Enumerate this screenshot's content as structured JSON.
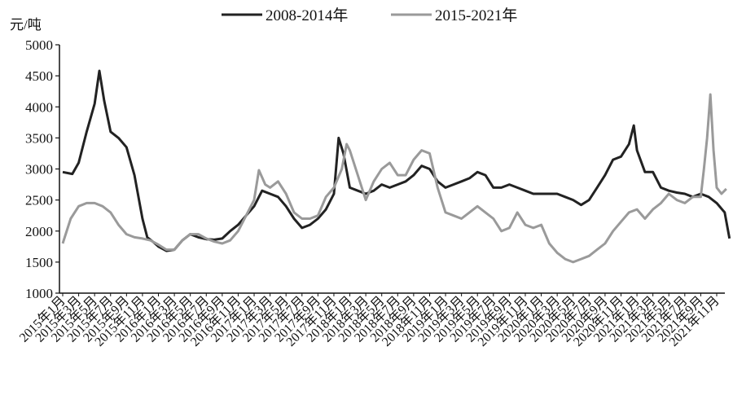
{
  "chart_data": {
    "type": "line",
    "title": "",
    "ylabel": "元/吨",
    "xlabel": "",
    "ylim": [
      1000,
      5000
    ],
    "yticks": [
      "5000",
      "4500",
      "4000",
      "3500",
      "3000",
      "2500",
      "2000",
      "1500",
      "1000"
    ],
    "grid": false,
    "legend_position": "top",
    "categories": [
      "2015年1月",
      "2015年3月",
      "2015年5月",
      "2015年7月",
      "2015年9月",
      "2015年11月",
      "2016年1月",
      "2016年3月",
      "2016年5月",
      "2016年7月",
      "2016年9月",
      "2016年11月",
      "2017年1月",
      "2017年3月",
      "2017年5月",
      "2017年7月",
      "2017年9月",
      "2017年11月",
      "2018年1月",
      "2018年3月",
      "2018年5月",
      "2018年7月",
      "2018年9月",
      "2018年11月",
      "2019年1月",
      "2019年3月",
      "2019年5月",
      "2019年7月",
      "2019年9月",
      "2019年11月",
      "2020年1月",
      "2020年3月",
      "2020年5月",
      "2020年7月",
      "2020年9月",
      "2020年11月",
      "2021年1月",
      "2021年3月",
      "2021年5月",
      "2021年7月",
      "2021年9月",
      "2021年11月"
    ],
    "series": [
      {
        "name": "2008-2014年",
        "color": "#222222",
        "points": [
          [
            0,
            2950
          ],
          [
            0.6,
            2920
          ],
          [
            1,
            3100
          ],
          [
            1.5,
            3600
          ],
          [
            2,
            4050
          ],
          [
            2.3,
            4580
          ],
          [
            2.6,
            4100
          ],
          [
            3,
            3600
          ],
          [
            3.5,
            3500
          ],
          [
            4,
            3350
          ],
          [
            4.5,
            2900
          ],
          [
            5,
            2200
          ],
          [
            5.3,
            1900
          ],
          [
            5.7,
            1820
          ],
          [
            6,
            1750
          ],
          [
            6.5,
            1680
          ],
          [
            7,
            1700
          ],
          [
            7.5,
            1850
          ],
          [
            8,
            1950
          ],
          [
            8.5,
            1900
          ],
          [
            9,
            1870
          ],
          [
            9.5,
            1860
          ],
          [
            10,
            1880
          ],
          [
            10.5,
            2000
          ],
          [
            11,
            2100
          ],
          [
            11.5,
            2250
          ],
          [
            12,
            2400
          ],
          [
            12.5,
            2650
          ],
          [
            13,
            2600
          ],
          [
            13.5,
            2550
          ],
          [
            14,
            2400
          ],
          [
            14.5,
            2200
          ],
          [
            15,
            2050
          ],
          [
            15.5,
            2100
          ],
          [
            16,
            2200
          ],
          [
            16.5,
            2350
          ],
          [
            17,
            2600
          ],
          [
            17.3,
            3500
          ],
          [
            17.6,
            3250
          ],
          [
            18,
            2700
          ],
          [
            18.5,
            2650
          ],
          [
            19,
            2600
          ],
          [
            19.5,
            2650
          ],
          [
            20,
            2750
          ],
          [
            20.5,
            2700
          ],
          [
            21,
            2750
          ],
          [
            21.5,
            2800
          ],
          [
            22,
            2900
          ],
          [
            22.5,
            3050
          ],
          [
            23,
            3000
          ],
          [
            23.5,
            2800
          ],
          [
            24,
            2700
          ],
          [
            24.5,
            2750
          ],
          [
            25,
            2800
          ],
          [
            25.5,
            2850
          ],
          [
            26,
            2950
          ],
          [
            26.5,
            2900
          ],
          [
            27,
            2700
          ],
          [
            27.5,
            2700
          ],
          [
            28,
            2750
          ],
          [
            28.5,
            2700
          ],
          [
            29,
            2650
          ],
          [
            29.5,
            2600
          ],
          [
            30,
            2600
          ],
          [
            30.5,
            2600
          ],
          [
            31,
            2600
          ],
          [
            31.5,
            2550
          ],
          [
            32,
            2500
          ],
          [
            32.5,
            2420
          ],
          [
            33,
            2500
          ],
          [
            33.5,
            2700
          ],
          [
            34,
            2900
          ],
          [
            34.5,
            3150
          ],
          [
            35,
            3200
          ],
          [
            35.5,
            3400
          ],
          [
            35.8,
            3700
          ],
          [
            36,
            3300
          ],
          [
            36.5,
            2950
          ],
          [
            37,
            2950
          ],
          [
            37.5,
            2700
          ],
          [
            38,
            2650
          ],
          [
            38.5,
            2620
          ],
          [
            39,
            2600
          ],
          [
            39.5,
            2550
          ],
          [
            40,
            2600
          ],
          [
            40.5,
            2550
          ],
          [
            41,
            2450
          ],
          [
            41.5,
            2300
          ],
          [
            41.8,
            1880
          ]
        ]
      },
      {
        "name": "2015-2021年",
        "color": "#9a9a9a",
        "points": [
          [
            0,
            1800
          ],
          [
            0.5,
            2200
          ],
          [
            1,
            2400
          ],
          [
            1.5,
            2450
          ],
          [
            2,
            2450
          ],
          [
            2.5,
            2400
          ],
          [
            3,
            2300
          ],
          [
            3.5,
            2100
          ],
          [
            4,
            1950
          ],
          [
            4.5,
            1900
          ],
          [
            5,
            1880
          ],
          [
            5.5,
            1850
          ],
          [
            6,
            1780
          ],
          [
            6.5,
            1700
          ],
          [
            7,
            1700
          ],
          [
            7.5,
            1850
          ],
          [
            8,
            1950
          ],
          [
            8.5,
            1950
          ],
          [
            9,
            1880
          ],
          [
            9.5,
            1830
          ],
          [
            10,
            1800
          ],
          [
            10.5,
            1850
          ],
          [
            11,
            2000
          ],
          [
            11.5,
            2250
          ],
          [
            12,
            2500
          ],
          [
            12.3,
            2980
          ],
          [
            12.7,
            2750
          ],
          [
            13,
            2700
          ],
          [
            13.5,
            2800
          ],
          [
            14,
            2600
          ],
          [
            14.5,
            2300
          ],
          [
            15,
            2200
          ],
          [
            15.5,
            2200
          ],
          [
            16,
            2250
          ],
          [
            16.5,
            2550
          ],
          [
            17,
            2700
          ],
          [
            17.5,
            3000
          ],
          [
            17.8,
            3400
          ],
          [
            18,
            3300
          ],
          [
            18.5,
            2900
          ],
          [
            19,
            2500
          ],
          [
            19.5,
            2800
          ],
          [
            20,
            3000
          ],
          [
            20.5,
            3100
          ],
          [
            21,
            2900
          ],
          [
            21.5,
            2900
          ],
          [
            22,
            3150
          ],
          [
            22.5,
            3300
          ],
          [
            23,
            3250
          ],
          [
            23.5,
            2700
          ],
          [
            24,
            2300
          ],
          [
            24.5,
            2250
          ],
          [
            25,
            2200
          ],
          [
            25.5,
            2300
          ],
          [
            26,
            2400
          ],
          [
            26.5,
            2300
          ],
          [
            27,
            2200
          ],
          [
            27.5,
            2000
          ],
          [
            28,
            2050
          ],
          [
            28.5,
            2300
          ],
          [
            29,
            2100
          ],
          [
            29.5,
            2050
          ],
          [
            30,
            2100
          ],
          [
            30.5,
            1800
          ],
          [
            31,
            1650
          ],
          [
            31.5,
            1550
          ],
          [
            32,
            1500
          ],
          [
            32.5,
            1550
          ],
          [
            33,
            1600
          ],
          [
            33.5,
            1700
          ],
          [
            34,
            1800
          ],
          [
            34.5,
            2000
          ],
          [
            35,
            2150
          ],
          [
            35.5,
            2300
          ],
          [
            36,
            2350
          ],
          [
            36.5,
            2200
          ],
          [
            37,
            2350
          ],
          [
            37.5,
            2450
          ],
          [
            38,
            2600
          ],
          [
            38.5,
            2500
          ],
          [
            39,
            2450
          ],
          [
            39.5,
            2550
          ],
          [
            40,
            2550
          ],
          [
            40.2,
            3000
          ],
          [
            40.4,
            3500
          ],
          [
            40.6,
            4200
          ],
          [
            40.8,
            3300
          ],
          [
            41,
            2700
          ],
          [
            41.3,
            2600
          ],
          [
            41.6,
            2680
          ]
        ]
      }
    ]
  }
}
